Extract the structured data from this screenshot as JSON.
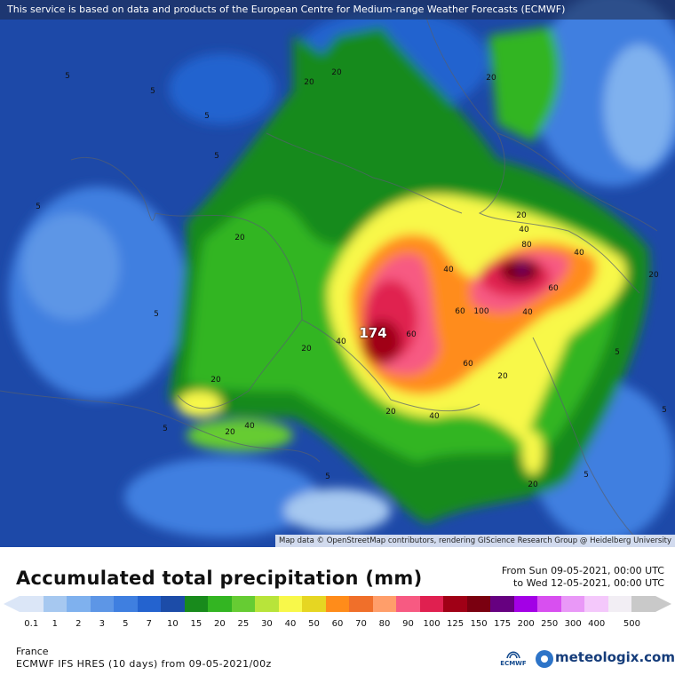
{
  "map": {
    "notice": "This service is based on data and products of the European Centre for Medium-range Weather Forecasts (ECMWF)",
    "attribution": "Map data © OpenStreetMap contributors, rendering GIScience Research Group @ Heidelberg University",
    "max_value": "174",
    "contour_labels": [
      "5",
      "5",
      "5",
      "5",
      "5",
      "5",
      "5",
      "5",
      "5",
      "5",
      "5",
      "20",
      "20",
      "20",
      "20",
      "20",
      "20",
      "20",
      "20",
      "20",
      "20",
      "20",
      "20",
      "40",
      "40",
      "40",
      "40",
      "40",
      "40",
      "40",
      "60",
      "60",
      "60",
      "60",
      "80",
      "100"
    ]
  },
  "header": {
    "title": "Accumulated total precipitation (mm)",
    "from": "From Sun 09-05-2021, 00:00 UTC",
    "to": "to Wed 12-05-2021, 00:00 UTC"
  },
  "legend": {
    "ticks": [
      "0.1",
      "1",
      "2",
      "3",
      "5",
      "7",
      "10",
      "15",
      "20",
      "25",
      "30",
      "40",
      "50",
      "60",
      "70",
      "80",
      "90",
      "100",
      "125",
      "150",
      "175",
      "200",
      "250",
      "300",
      "400",
      "500"
    ],
    "colors": [
      "#dbe6f7",
      "#a6c8f0",
      "#7fb1ee",
      "#5d96e6",
      "#3f7fe0",
      "#2463cf",
      "#1c4ca8",
      "#188a1c",
      "#33b522",
      "#66cc33",
      "#b8e43a",
      "#f8f84a",
      "#e6d622",
      "#ff8c1a",
      "#f06f2a",
      "#ff9e6a",
      "#f75a82",
      "#e02050",
      "#a00016",
      "#7a0010",
      "#660080",
      "#a300e6",
      "#d84ff0",
      "#e998f7",
      "#f4c8fb",
      "#f2eef4",
      "#c9c9c9"
    ]
  },
  "footer": {
    "region": "France",
    "model": "ECMWF IFS HRES (10 days) from 09-05-2021/00z",
    "ecmwf_logo_text": "ECMWF",
    "brand": "meteologix.com"
  }
}
